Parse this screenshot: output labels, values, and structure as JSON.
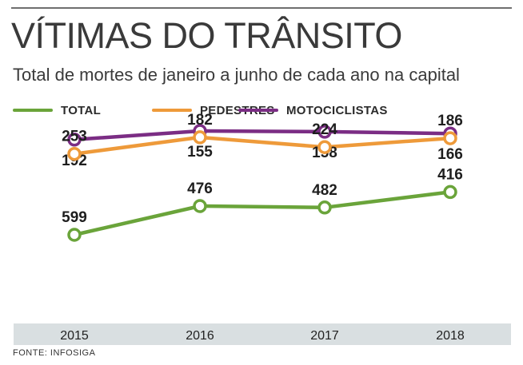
{
  "header": {
    "title": "VÍTIMAS DO TRÂNSITO",
    "subtitle": "Total de mortes de janeiro a junho de cada ano na capital"
  },
  "legend": {
    "total": "TOTAL",
    "pedestres": "PEDESTRES",
    "motociclistas": "MOTOCICLISTAS"
  },
  "colors": {
    "total": "#6aa43a",
    "pedestres": "#ee9a3a",
    "motociclistas": "#7b2d84",
    "axis_band": "#d9dfe1"
  },
  "source": "FONTE: INFOSIGA",
  "chart_data": {
    "type": "line",
    "categories": [
      "2015",
      "2016",
      "2017",
      "2018"
    ],
    "series": [
      {
        "name": "TOTAL",
        "values": [
          599,
          476,
          482,
          416
        ]
      },
      {
        "name": "PEDESTRES",
        "values": [
          253,
          182,
          224,
          186
        ]
      },
      {
        "name": "MOTOCICLISTAS",
        "values": [
          192,
          155,
          158,
          166
        ]
      }
    ],
    "title": "VÍTIMAS DO TRÂNSITO",
    "subtitle": "Total de mortes de janeiro a junho de cada ano na capital",
    "xlabel": "",
    "ylabel": "",
    "grid": false,
    "legend_position": "top-left"
  }
}
